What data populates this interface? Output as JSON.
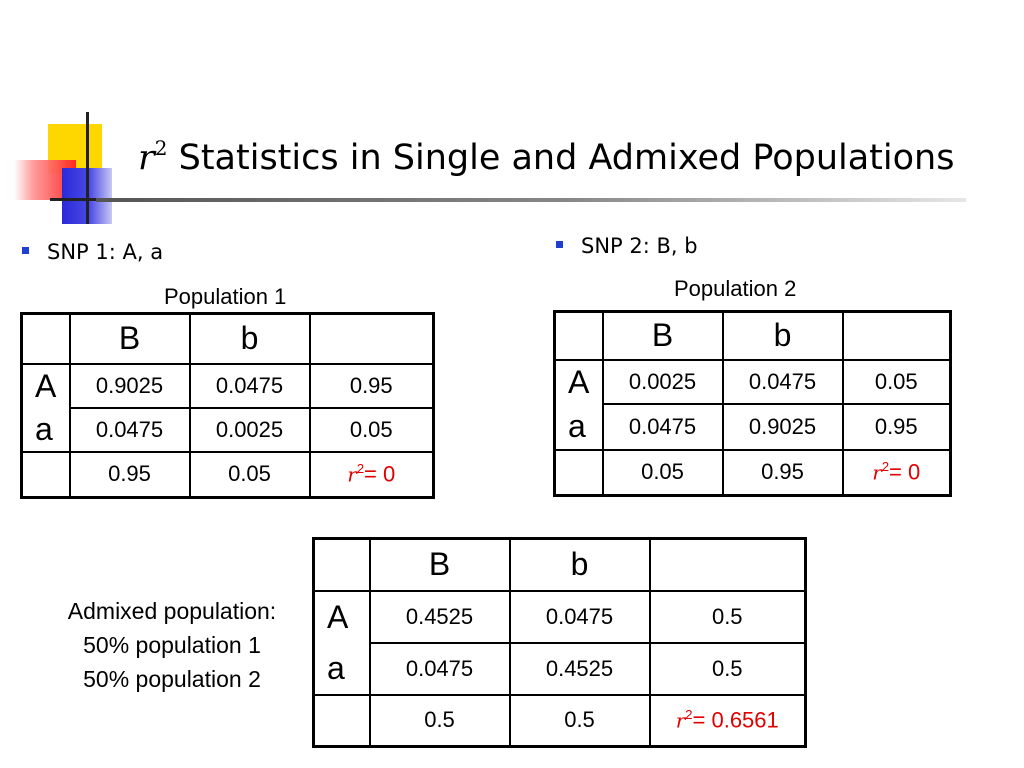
{
  "slide": {
    "title": {
      "r_symbol": "r",
      "superscript": "2",
      "text": "Statistics in Single and Admixed Populations"
    }
  },
  "bullets": [
    {
      "text": "SNP 1: A, a"
    },
    {
      "text": "SNP 2: B, b"
    }
  ],
  "tables": {
    "pop1": {
      "label": "Population 1",
      "col_headers": [
        "B",
        "b",
        ""
      ],
      "row_headers": [
        "A",
        "a",
        ""
      ],
      "rows": [
        [
          "0.9025",
          "0.0475",
          "0.95"
        ],
        [
          "0.0475",
          "0.0025",
          "0.05"
        ],
        [
          "0.95",
          "0.05",
          ""
        ]
      ],
      "r2_value": "= 0"
    },
    "pop2": {
      "label": "Population 2",
      "col_headers": [
        "B",
        "b",
        ""
      ],
      "row_headers": [
        "A",
        "a",
        ""
      ],
      "rows": [
        [
          "0.0025",
          "0.0475",
          "0.05"
        ],
        [
          "0.0475",
          "0.9025",
          "0.95"
        ],
        [
          "0.05",
          "0.95",
          ""
        ]
      ],
      "r2_value": "= 0"
    },
    "admixed": {
      "label_lines": [
        "Admixed population:",
        "50% population 1",
        "50% population 2"
      ],
      "col_headers": [
        "B",
        "b",
        ""
      ],
      "row_headers": [
        "A",
        "a",
        ""
      ],
      "rows": [
        [
          "0.4525",
          "0.0475",
          "0.5"
        ],
        [
          "0.0475",
          "0.4525",
          "0.5"
        ],
        [
          "0.5",
          "0.5",
          ""
        ]
      ],
      "r2_value": "= 0.6561"
    }
  },
  "r2_label": {
    "r": "r",
    "sup": "2"
  },
  "colors": {
    "accent_red": "#e00000",
    "bullet_blue": "#1f3fd0",
    "logo_yellow": "#ffd700"
  }
}
